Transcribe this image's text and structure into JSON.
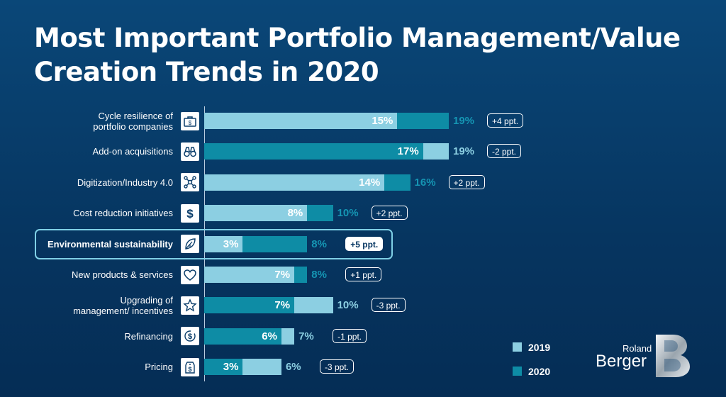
{
  "title_line1": "Most Important Portfolio Management/Value",
  "title_line2": "Creation Trends in 2020",
  "chart_data": {
    "type": "bar",
    "orientation": "horizontal",
    "stacked_overlay": true,
    "categories": [
      {
        "label_lines": [
          "Cycle resilience of",
          "portfolio companies"
        ],
        "icon": "briefcase-money-icon",
        "v2019": 15,
        "v2020": 19,
        "change": "+4 ppt.",
        "highlight": false
      },
      {
        "label_lines": [
          "Add-on acquisitions"
        ],
        "icon": "binoculars-icon",
        "v2019": 19,
        "v2020": 17,
        "change": "-2 ppt.",
        "highlight": false
      },
      {
        "label_lines": [
          "Digitization/Industry 4.0"
        ],
        "icon": "network-icon",
        "v2019": 14,
        "v2020": 16,
        "change": "+2 ppt.",
        "highlight": false
      },
      {
        "label_lines": [
          "Cost reduction initiatives"
        ],
        "icon": "dollar-icon",
        "v2019": 8,
        "v2020": 10,
        "change": "+2 ppt.",
        "highlight": false
      },
      {
        "label_lines": [
          "Environmental sustainability"
        ],
        "icon": "leaf-icon",
        "v2019": 3,
        "v2020": 8,
        "change": "+5 ppt.",
        "highlight": true
      },
      {
        "label_lines": [
          "New products & services"
        ],
        "icon": "heart-icon",
        "v2019": 7,
        "v2020": 8,
        "change": "+1 ppt.",
        "highlight": false
      },
      {
        "label_lines": [
          "Upgrading of",
          "management/ incentives"
        ],
        "icon": "star-icon",
        "v2019": 10,
        "v2020": 7,
        "change": "-3 ppt.",
        "highlight": false
      },
      {
        "label_lines": [
          "Refinancing"
        ],
        "icon": "refinance-dollar-icon",
        "v2019": 7,
        "v2020": 6,
        "change": "-1 ppt.",
        "highlight": false
      },
      {
        "label_lines": [
          "Pricing"
        ],
        "icon": "price-tag-icon",
        "v2019": 6,
        "v2020": 3,
        "change": "-3 ppt.",
        "highlight": false
      }
    ],
    "series": [
      {
        "name": "2019",
        "color": "#8ccfe2"
      },
      {
        "name": "2020",
        "color": "#0e8ca5"
      }
    ],
    "unit": "%",
    "xlim": [
      0,
      19
    ],
    "grid": false,
    "legend_position": "bottom-right"
  },
  "logo": {
    "line1": "Roland",
    "line2": "Berger",
    "mark": "B"
  }
}
